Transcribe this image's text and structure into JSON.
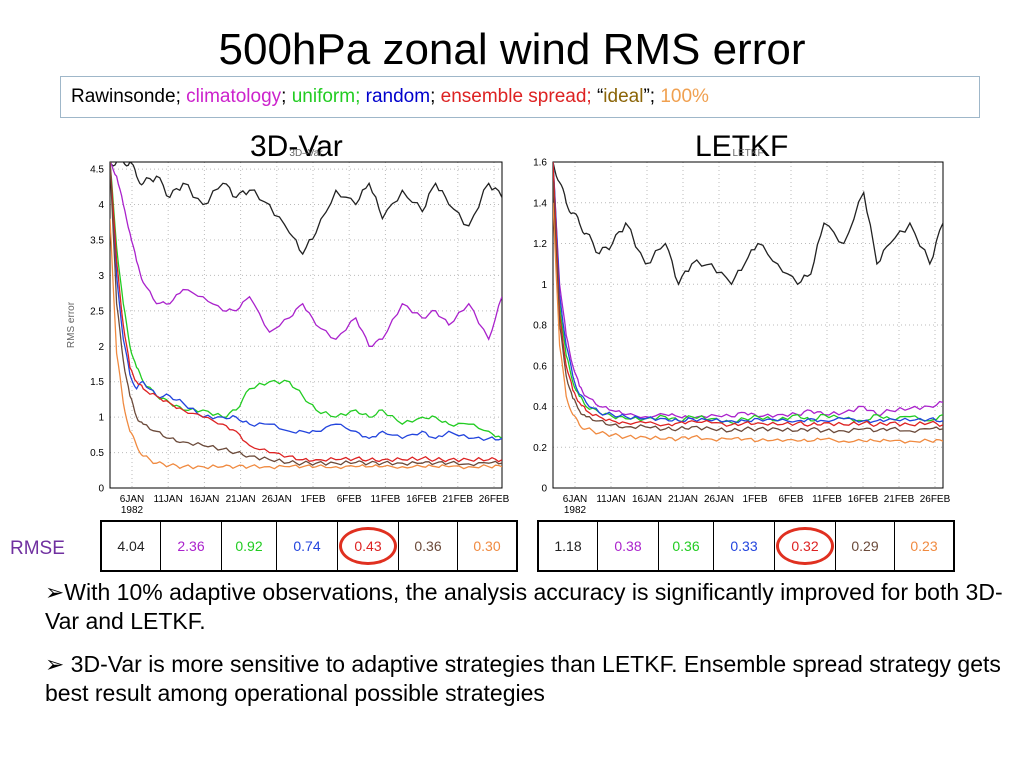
{
  "title": "500hPa zonal wind RMS error",
  "legend": {
    "items": [
      {
        "text": "Rawinsonde; ",
        "color": "#000000"
      },
      {
        "text": "climatology",
        "color": "#cc22cc"
      },
      {
        "text": "; ",
        "color": "#000000"
      },
      {
        "text": "uniform; ",
        "color": "#22cc22"
      },
      {
        "text": "random",
        "color": "#0000cc"
      },
      {
        "text": "; ",
        "color": "#000000"
      },
      {
        "text": "ensemble spread; ",
        "color": "#dd2222"
      },
      {
        "text": "“",
        "color": "#000000"
      },
      {
        "text": "ideal",
        "color": "#8b6508"
      },
      {
        "text": "”; ",
        "color": "#000000"
      },
      {
        "text": "100%",
        "color": "#f0a050"
      }
    ]
  },
  "rmse_label": "RMSE",
  "bullets": [
    "➢With 10% adaptive observations, the analysis accuracy is significantly improved for both 3D-Var and LETKF.",
    "➢ 3D-Var is more sensitive to adaptive strategies than LETKF. Ensemble spread strategy gets best result among operational possible strategies"
  ],
  "colors": {
    "rawinsonde": "#222222",
    "climatology": "#aa22cc",
    "uniform": "#22cc22",
    "random": "#2244dd",
    "ensemble_spread": "#dd2222",
    "ideal": "#6b4a3a",
    "full": "#f08a40",
    "highlight": "#e03020"
  },
  "chart_data": [
    {
      "type": "line",
      "title": "3D-Var",
      "inner_title": "3D–Var",
      "ylabel": "RMS  error",
      "xlabel": "",
      "ylim": [
        0,
        4.6
      ],
      "yticks": [
        "0",
        "0.5",
        "1",
        "1.5",
        "2",
        "2.5",
        "3",
        "3.5",
        "4",
        "4.5"
      ],
      "xticks": [
        "6JAN\n1982",
        "11JAN",
        "16JAN",
        "21JAN",
        "26JAN",
        "1FEB",
        "6FEB",
        "11FEB",
        "16FEB",
        "21FEB",
        "26FEB"
      ],
      "x": [
        1,
        2,
        3,
        4,
        5,
        6,
        8,
        10,
        12,
        15,
        18,
        20,
        22,
        25,
        28,
        30,
        32,
        35,
        38,
        40,
        42,
        45,
        48,
        50,
        52,
        55,
        58,
        60
      ],
      "series": [
        {
          "key": "rawinsonde",
          "values": [
            4.6,
            4.6,
            4.6,
            4.6,
            4.4,
            4.3,
            4.4,
            4.1,
            4.3,
            4.0,
            4.3,
            4.1,
            4.2,
            4.0,
            3.6,
            3.3,
            3.6,
            4.2,
            4.0,
            4.3,
            3.8,
            4.2,
            3.9,
            4.3,
            4.0,
            3.7,
            4.3,
            4.1
          ]
        },
        {
          "key": "climatology",
          "values": [
            4.6,
            4.4,
            4.0,
            3.6,
            3.2,
            2.9,
            2.6,
            2.6,
            2.8,
            2.7,
            2.5,
            2.5,
            2.7,
            2.2,
            2.4,
            2.6,
            2.3,
            2.1,
            2.4,
            2.0,
            2.1,
            2.6,
            2.4,
            2.5,
            2.3,
            2.6,
            2.1,
            2.7
          ]
        },
        {
          "key": "uniform",
          "values": [
            4.6,
            3.4,
            2.6,
            2.0,
            1.7,
            1.5,
            1.3,
            1.2,
            1.1,
            1.1,
            1.0,
            1.1,
            1.4,
            1.5,
            1.5,
            1.3,
            1.1,
            1.0,
            1.1,
            1.0,
            1.1,
            0.9,
            1.0,
            1.0,
            0.9,
            0.9,
            0.8,
            0.7
          ]
        },
        {
          "key": "random",
          "values": [
            4.6,
            3.0,
            2.1,
            1.6,
            1.4,
            1.5,
            1.3,
            1.3,
            1.2,
            1.0,
            1.0,
            1.0,
            0.9,
            0.9,
            0.8,
            0.8,
            0.8,
            0.9,
            0.8,
            0.7,
            0.8,
            0.7,
            0.8,
            0.7,
            0.8,
            0.7,
            0.7,
            0.7
          ]
        },
        {
          "key": "ensemble_spread",
          "values": [
            4.6,
            3.2,
            2.3,
            1.7,
            1.5,
            1.4,
            1.3,
            1.2,
            1.1,
            1.0,
            0.9,
            0.8,
            0.6,
            0.5,
            0.45,
            0.4,
            0.4,
            0.4,
            0.42,
            0.4,
            0.4,
            0.4,
            0.42,
            0.4,
            0.4,
            0.4,
            0.4,
            0.4
          ]
        },
        {
          "key": "ideal",
          "values": [
            4.6,
            2.6,
            1.8,
            1.3,
            1.0,
            0.9,
            0.8,
            0.7,
            0.65,
            0.6,
            0.55,
            0.5,
            0.45,
            0.4,
            0.36,
            0.35,
            0.35,
            0.35,
            0.36,
            0.35,
            0.35,
            0.35,
            0.35,
            0.35,
            0.35,
            0.34,
            0.35,
            0.35
          ]
        },
        {
          "key": "full",
          "values": [
            3.8,
            1.9,
            1.2,
            0.8,
            0.6,
            0.45,
            0.35,
            0.32,
            0.3,
            0.3,
            0.3,
            0.3,
            0.3,
            0.3,
            0.3,
            0.3,
            0.3,
            0.3,
            0.3,
            0.3,
            0.3,
            0.3,
            0.3,
            0.3,
            0.3,
            0.3,
            0.3,
            0.3
          ]
        }
      ],
      "rmse": [
        "4.04",
        "2.36",
        "0.92",
        "0.74",
        "0.43",
        "0.36",
        "0.30"
      ]
    },
    {
      "type": "line",
      "title": "LETKF",
      "inner_title": "LETKF",
      "ylabel": "",
      "xlabel": "",
      "ylim": [
        0,
        1.6
      ],
      "yticks": [
        "0",
        "0.2",
        "0.4",
        "0.6",
        "0.8",
        "1",
        "1.2",
        "1.4",
        "1.6"
      ],
      "xticks": [
        "6JAN\n1982",
        "11JAN",
        "16JAN",
        "21JAN",
        "26JAN",
        "1FEB",
        "6FEB",
        "11FEB",
        "16FEB",
        "21FEB",
        "26FEB"
      ],
      "x": [
        1,
        2,
        3,
        4,
        5,
        6,
        8,
        10,
        12,
        15,
        18,
        20,
        22,
        25,
        28,
        30,
        32,
        35,
        38,
        40,
        42,
        45,
        48,
        50,
        52,
        55,
        58,
        60
      ],
      "series": [
        {
          "key": "rawinsonde",
          "values": [
            1.6,
            1.5,
            1.4,
            1.35,
            1.3,
            1.25,
            1.15,
            1.2,
            1.3,
            1.1,
            1.2,
            1.0,
            1.1,
            1.1,
            1.0,
            1.1,
            1.2,
            1.1,
            1.0,
            1.05,
            1.3,
            1.2,
            1.45,
            1.1,
            1.2,
            1.3,
            1.1,
            1.3
          ]
        },
        {
          "key": "climatology",
          "values": [
            1.6,
            1.0,
            0.75,
            0.6,
            0.5,
            0.45,
            0.4,
            0.38,
            0.36,
            0.35,
            0.36,
            0.35,
            0.34,
            0.36,
            0.35,
            0.37,
            0.35,
            0.36,
            0.36,
            0.38,
            0.36,
            0.37,
            0.4,
            0.36,
            0.38,
            0.39,
            0.4,
            0.42
          ]
        },
        {
          "key": "uniform",
          "values": [
            1.6,
            0.9,
            0.65,
            0.52,
            0.45,
            0.4,
            0.37,
            0.35,
            0.34,
            0.34,
            0.35,
            0.33,
            0.35,
            0.34,
            0.32,
            0.34,
            0.35,
            0.33,
            0.36,
            0.33,
            0.36,
            0.34,
            0.33,
            0.36,
            0.34,
            0.35,
            0.33,
            0.36
          ]
        },
        {
          "key": "random",
          "values": [
            1.6,
            0.95,
            0.7,
            0.55,
            0.46,
            0.42,
            0.37,
            0.36,
            0.35,
            0.34,
            0.34,
            0.33,
            0.34,
            0.33,
            0.33,
            0.33,
            0.34,
            0.33,
            0.33,
            0.34,
            0.33,
            0.34,
            0.33,
            0.33,
            0.34,
            0.33,
            0.34,
            0.33
          ]
        },
        {
          "key": "ensemble_spread",
          "values": [
            1.6,
            0.85,
            0.6,
            0.48,
            0.42,
            0.38,
            0.35,
            0.33,
            0.32,
            0.32,
            0.31,
            0.32,
            0.33,
            0.32,
            0.31,
            0.32,
            0.32,
            0.31,
            0.32,
            0.31,
            0.32,
            0.31,
            0.32,
            0.31,
            0.32,
            0.31,
            0.32,
            0.31
          ]
        },
        {
          "key": "ideal",
          "values": [
            1.5,
            0.8,
            0.55,
            0.44,
            0.38,
            0.35,
            0.33,
            0.31,
            0.3,
            0.3,
            0.29,
            0.29,
            0.3,
            0.29,
            0.28,
            0.29,
            0.29,
            0.29,
            0.28,
            0.29,
            0.28,
            0.28,
            0.29,
            0.28,
            0.29,
            0.28,
            0.29,
            0.29
          ]
        },
        {
          "key": "full",
          "values": [
            1.4,
            0.7,
            0.45,
            0.36,
            0.31,
            0.29,
            0.27,
            0.26,
            0.25,
            0.25,
            0.24,
            0.24,
            0.25,
            0.24,
            0.24,
            0.24,
            0.23,
            0.24,
            0.23,
            0.23,
            0.24,
            0.23,
            0.23,
            0.23,
            0.23,
            0.23,
            0.23,
            0.23
          ]
        }
      ],
      "rmse": [
        "1.18",
        "0.38",
        "0.36",
        "0.33",
        "0.32",
        "0.29",
        "0.23"
      ]
    }
  ]
}
